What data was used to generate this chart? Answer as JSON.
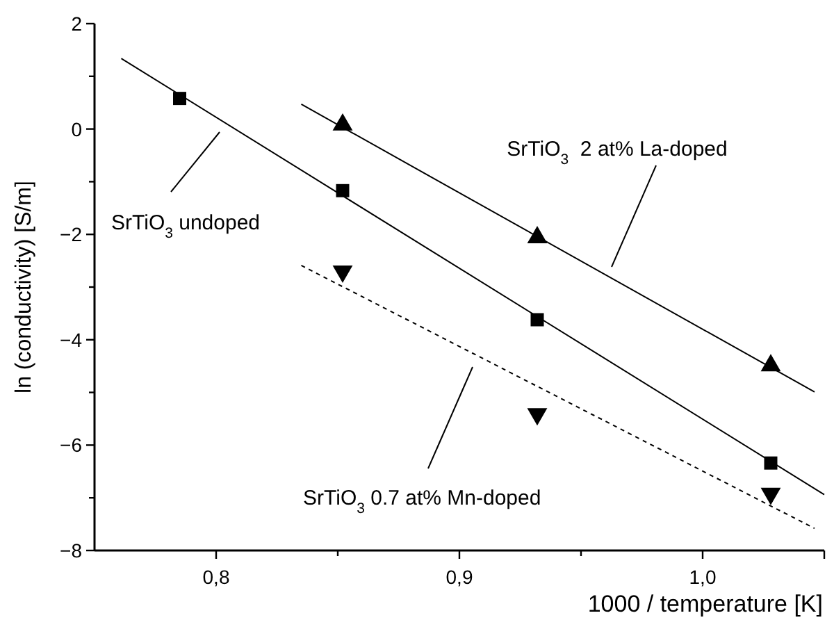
{
  "chart_data": {
    "type": "scatter",
    "xlabel": "1000 / temperature [K]",
    "ylabel": "ln (conductivity) [S/m]",
    "xlim": [
      0.75,
      1.05
    ],
    "ylim": [
      -8,
      2
    ],
    "xticks": [
      {
        "value": 0.8,
        "label": "0,8"
      },
      {
        "value": 0.85,
        "label": null
      },
      {
        "value": 0.9,
        "label": "0,9"
      },
      {
        "value": 0.95,
        "label": null
      },
      {
        "value": 1.0,
        "label": "1,0"
      }
    ],
    "yticks": [
      -8,
      {
        "value": -7,
        "label": null
      },
      -6,
      {
        "value": -5,
        "label": null
      },
      -4,
      {
        "value": -3,
        "label": null
      },
      -2,
      {
        "value": -1,
        "label": null
      },
      0,
      {
        "value": 1,
        "label": null
      },
      2
    ],
    "series": [
      {
        "marker": "square",
        "color": "#000000",
        "x": [
          0.785,
          0.852,
          0.932,
          1.028
        ],
        "values": [
          0.58,
          -1.17,
          -3.62,
          -6.34
        ]
      },
      {
        "marker": "triangle",
        "color": "#000000",
        "x": [
          0.852,
          0.932,
          1.028
        ],
        "values": [
          0.08,
          -2.06,
          -4.49
        ]
      },
      {
        "marker": "triangle-down",
        "color": "#000000",
        "x": [
          0.852,
          0.932,
          1.028
        ],
        "values": [
          -2.7,
          -5.41,
          -6.92
        ]
      },
      {
        "type": "line",
        "line_style": "solid",
        "color": "#000000",
        "x": [
          0.761,
          1.05
        ],
        "values": [
          1.34,
          -6.94
        ]
      },
      {
        "type": "line",
        "line_style": "solid",
        "color": "#000000",
        "x": [
          0.835,
          1.046
        ],
        "values": [
          0.47,
          -4.99
        ]
      },
      {
        "type": "line",
        "line_style": "dashed",
        "color": "#000000",
        "x": [
          0.835,
          1.046
        ],
        "values": [
          -2.59,
          -7.58
        ]
      }
    ],
    "annotations": [
      "SrTiO$_{3}$ undoped",
      "SrTiO$_{3}$  2 at% La-doped",
      "SrTiO$_{3}$ 0.7 at% Mn-doped"
    ]
  }
}
